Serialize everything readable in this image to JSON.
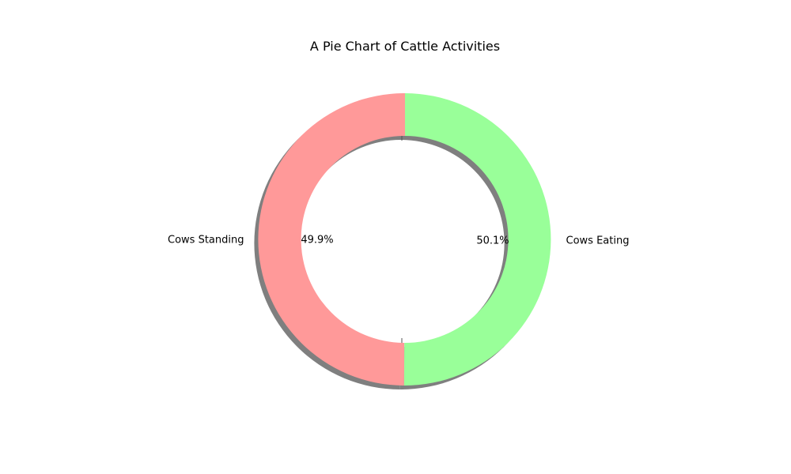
{
  "chart_data": {
    "type": "pie",
    "style": "donut",
    "title": "A Pie Chart of Cattle Activities",
    "slices": [
      {
        "label": "Cows Standing",
        "value": 49.9,
        "pct_label": "49.9%",
        "color": "#ff9999"
      },
      {
        "label": "Cows Eating",
        "value": 50.1,
        "pct_label": "50.1%",
        "color": "#99ff99"
      }
    ],
    "start_angle_deg": 90,
    "direction": "counterclockwise",
    "shadow": true,
    "shadow_color": "#7f7f7f",
    "legend": "none"
  }
}
